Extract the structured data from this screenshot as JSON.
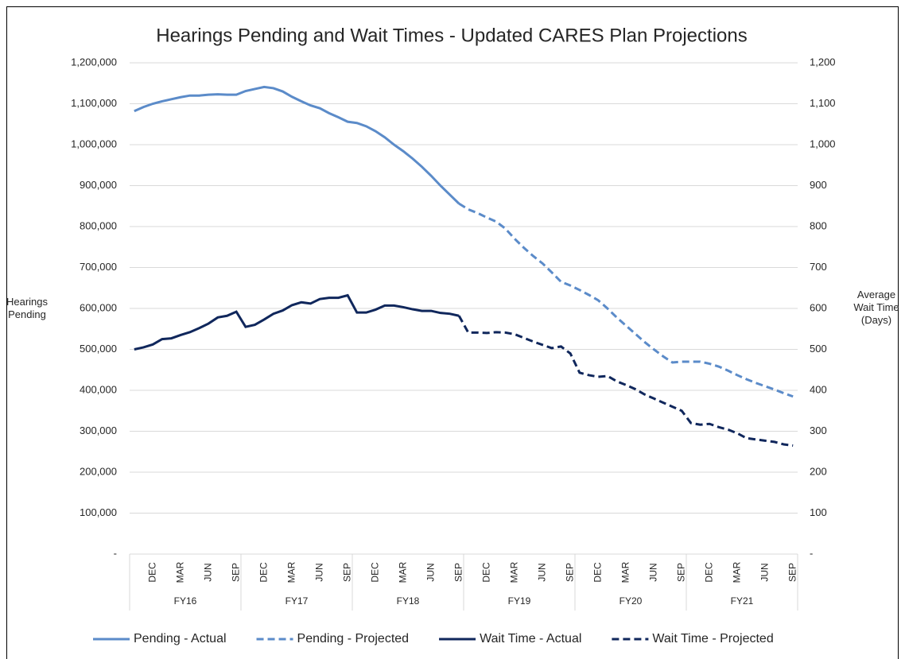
{
  "chart_data": {
    "type": "line",
    "title": "Hearings Pending and Wait Times - Updated CARES Plan Projections",
    "y_label": "Hearings Pending",
    "y2_label": "Average Wait Time (Days)",
    "categories": [
      null,
      null,
      "DEC",
      null,
      null,
      "MAR",
      null,
      null,
      "JUN",
      null,
      null,
      "SEP",
      null,
      null,
      "DEC",
      null,
      null,
      "MAR",
      null,
      null,
      "JUN",
      null,
      null,
      "SEP",
      null,
      null,
      "DEC",
      null,
      null,
      "MAR",
      null,
      null,
      "JUN",
      null,
      null,
      "SEP",
      null,
      null,
      "DEC",
      null,
      null,
      "MAR",
      null,
      null,
      "JUN",
      null,
      null,
      "SEP",
      null,
      null,
      "DEC",
      null,
      null,
      "MAR",
      null,
      null,
      "JUN",
      null,
      null,
      "SEP",
      null,
      null,
      "DEC",
      null,
      null,
      "MAR",
      null,
      null,
      "JUN",
      null,
      null,
      "SEP"
    ],
    "groups": [
      "FY16",
      "FY17",
      "FY18",
      "FY19",
      "FY20",
      "FY21"
    ],
    "ylim": [
      0,
      1200000
    ],
    "yticks": [
      {
        "value": 0,
        "label": "-"
      },
      {
        "value": 100000,
        "label": "100,000"
      },
      {
        "value": 200000,
        "label": "200,000"
      },
      {
        "value": 300000,
        "label": "300,000"
      },
      {
        "value": 400000,
        "label": "400,000"
      },
      {
        "value": 500000,
        "label": "500,000"
      },
      {
        "value": 600000,
        "label": "600,000"
      },
      {
        "value": 700000,
        "label": "700,000"
      },
      {
        "value": 800000,
        "label": "800,000"
      },
      {
        "value": 900000,
        "label": "900,000"
      },
      {
        "value": 1000000,
        "label": "1,000,000"
      },
      {
        "value": 1100000,
        "label": "1,100,000"
      },
      {
        "value": 1200000,
        "label": "1,200,000"
      }
    ],
    "y2lim": [
      0,
      1200
    ],
    "y2ticks": [
      {
        "value": 0,
        "label": "-"
      },
      100,
      200,
      300,
      400,
      500,
      600,
      700,
      800,
      900,
      {
        "value": 1000,
        "label": "1,000"
      },
      {
        "value": 1100,
        "label": "1,100"
      },
      {
        "value": 1200,
        "label": "1,200"
      }
    ],
    "grid": true,
    "legend": "bottom",
    "series": [
      {
        "name": "Pending - Actual",
        "color": "#5b8bc9",
        "dashed": false,
        "axis": "y",
        "values": [
          1082000,
          1092000,
          1100000,
          1106000,
          1111000,
          1116000,
          1120000,
          1120000,
          1122000,
          1123000,
          1122000,
          1122000,
          1131000,
          1136000,
          1141000,
          1138000,
          1130000,
          1117000,
          1106000,
          1096000,
          1089000,
          1077000,
          1067000,
          1056000,
          1053000,
          1045000,
          1033000,
          1018000,
          1000000,
          984000,
          966000,
          946000,
          924000,
          900000,
          878000,
          856000,
          null,
          null,
          null,
          null,
          null,
          null,
          null,
          null,
          null,
          null,
          null,
          null,
          null,
          null,
          null,
          null,
          null,
          null,
          null,
          null,
          null,
          null,
          null,
          null,
          null,
          null,
          null,
          null,
          null,
          null,
          null,
          null,
          null,
          null,
          null,
          null
        ]
      },
      {
        "name": "Pending - Projected",
        "color": "#5b8bc9",
        "dashed": true,
        "axis": "y",
        "values": [
          null,
          null,
          null,
          null,
          null,
          null,
          null,
          null,
          null,
          null,
          null,
          null,
          null,
          null,
          null,
          null,
          null,
          null,
          null,
          null,
          null,
          null,
          null,
          null,
          null,
          null,
          null,
          null,
          null,
          null,
          null,
          null,
          null,
          null,
          null,
          856000,
          842000,
          833000,
          822000,
          812000,
          795000,
          770000,
          748000,
          728000,
          710000,
          688000,
          665000,
          656000,
          645000,
          633000,
          620000,
          600000,
          578000,
          558000,
          538000,
          518000,
          500000,
          483000,
          468000,
          470000,
          470000,
          470000,
          465000,
          458000,
          448000,
          437000,
          427000,
          418000,
          410000,
          402000,
          393000,
          385000
        ]
      },
      {
        "name": "Wait Time - Actual",
        "color": "#10275c",
        "dashed": false,
        "axis": "y2",
        "values": [
          500,
          505,
          512,
          525,
          527,
          535,
          542,
          552,
          563,
          578,
          582,
          592,
          555,
          560,
          573,
          587,
          595,
          608,
          615,
          612,
          623,
          626,
          626,
          632,
          590,
          590,
          597,
          607,
          607,
          603,
          598,
          594,
          594,
          589,
          587,
          582,
          null,
          null,
          null,
          null,
          null,
          null,
          null,
          null,
          null,
          null,
          null,
          null,
          null,
          null,
          null,
          null,
          null,
          null,
          null,
          null,
          null,
          null,
          null,
          null,
          null,
          null,
          null,
          null,
          null,
          null,
          null,
          null,
          null,
          null,
          null,
          null
        ]
      },
      {
        "name": "Wait Time - Projected",
        "color": "#10275c",
        "dashed": true,
        "axis": "y2",
        "values": [
          null,
          null,
          null,
          null,
          null,
          null,
          null,
          null,
          null,
          null,
          null,
          null,
          null,
          null,
          null,
          null,
          null,
          null,
          null,
          null,
          null,
          null,
          null,
          null,
          null,
          null,
          null,
          null,
          null,
          null,
          null,
          null,
          null,
          null,
          null,
          582,
          541,
          541,
          540,
          542,
          541,
          537,
          528,
          519,
          511,
          503,
          507,
          490,
          443,
          437,
          433,
          435,
          422,
          413,
          403,
          390,
          380,
          370,
          360,
          350,
          320,
          316,
          318,
          310,
          304,
          295,
          283,
          280,
          277,
          274,
          268,
          265
        ]
      }
    ]
  }
}
